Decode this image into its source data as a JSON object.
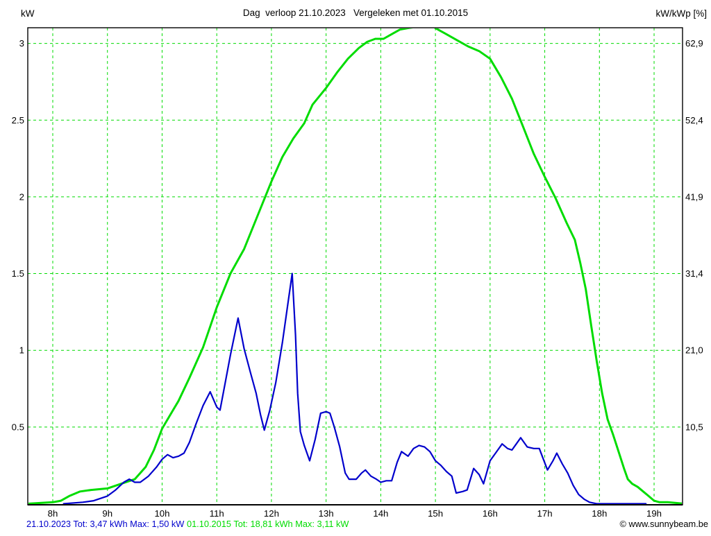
{
  "header": {
    "left_axis_unit": "kW",
    "title": "Dag  verloop 21.10.2023   Vergeleken met 01.10.2015",
    "right_axis_unit": "kW/kWp [%]"
  },
  "footer": {
    "series1_summary": "21.10.2023 Tot: 3,47 kWh Max: 1,50 kW ",
    "series2_summary": "01.10.2015 Tot: 18,81 kWh Max: 3,11 kW",
    "copyright": "© www.sunnybeam.be"
  },
  "colors": {
    "series_2023": "#0000CC",
    "series_2015": "#00DC00",
    "grid": "#00DC00",
    "axis": "#000000",
    "background": "#FFFFFF"
  },
  "chart_data": {
    "type": "line",
    "title": "Dag verloop 21.10.2023 Vergeleken met 01.10.2015",
    "ylabel_left": "kW",
    "ylabel_right": "kW/kWp [%]",
    "grid": true,
    "legend_position": "footer",
    "x_ticks": [
      "8h",
      "9h",
      "10h",
      "11h",
      "12h",
      "13h",
      "14h",
      "15h",
      "16h",
      "17h",
      "18h",
      "19h"
    ],
    "x_tick_hours": [
      8,
      9,
      10,
      11,
      12,
      13,
      14,
      15,
      16,
      17,
      18,
      19
    ],
    "y_ticks_left": [
      "3",
      "2.5",
      "2",
      "1.5",
      "1",
      "0.5"
    ],
    "y_tick_values": [
      3,
      2.5,
      2,
      1.5,
      1,
      0.5
    ],
    "y_ticks_right": [
      "62,9",
      "52,4",
      "41,9",
      "31,4",
      "21,0",
      "10,5"
    ],
    "xlim_hours": [
      7.5,
      19.55
    ],
    "ylim_kw": [
      0,
      3.1
    ],
    "series": [
      {
        "name": "21.10.2023",
        "unit": "kW",
        "total_kwh": "3,47",
        "max_kw": "1,50",
        "color": "#0000CC",
        "line_width": 2.2,
        "points": [
          [
            8.2,
            0.0
          ],
          [
            8.55,
            0.01
          ],
          [
            8.75,
            0.02
          ],
          [
            9.0,
            0.05
          ],
          [
            9.15,
            0.09
          ],
          [
            9.3,
            0.14
          ],
          [
            9.4,
            0.16
          ],
          [
            9.5,
            0.14
          ],
          [
            9.6,
            0.14
          ],
          [
            9.75,
            0.18
          ],
          [
            9.9,
            0.24
          ],
          [
            10.0,
            0.29
          ],
          [
            10.1,
            0.32
          ],
          [
            10.2,
            0.3
          ],
          [
            10.3,
            0.31
          ],
          [
            10.4,
            0.33
          ],
          [
            10.5,
            0.4
          ],
          [
            10.62,
            0.52
          ],
          [
            10.75,
            0.64
          ],
          [
            10.88,
            0.73
          ],
          [
            11.0,
            0.63
          ],
          [
            11.06,
            0.61
          ],
          [
            11.15,
            0.78
          ],
          [
            11.25,
            0.97
          ],
          [
            11.39,
            1.21
          ],
          [
            11.5,
            1.01
          ],
          [
            11.62,
            0.85
          ],
          [
            11.72,
            0.72
          ],
          [
            11.8,
            0.58
          ],
          [
            11.87,
            0.48
          ],
          [
            11.97,
            0.61
          ],
          [
            12.08,
            0.79
          ],
          [
            12.2,
            1.05
          ],
          [
            12.3,
            1.3
          ],
          [
            12.38,
            1.5
          ],
          [
            12.44,
            1.1
          ],
          [
            12.48,
            0.72
          ],
          [
            12.53,
            0.47
          ],
          [
            12.6,
            0.38
          ],
          [
            12.7,
            0.28
          ],
          [
            12.8,
            0.42
          ],
          [
            12.9,
            0.59
          ],
          [
            13.0,
            0.6
          ],
          [
            13.07,
            0.59
          ],
          [
            13.15,
            0.5
          ],
          [
            13.25,
            0.37
          ],
          [
            13.35,
            0.2
          ],
          [
            13.42,
            0.16
          ],
          [
            13.55,
            0.16
          ],
          [
            13.65,
            0.2
          ],
          [
            13.72,
            0.22
          ],
          [
            13.82,
            0.18
          ],
          [
            13.92,
            0.16
          ],
          [
            14.0,
            0.14
          ],
          [
            14.1,
            0.15
          ],
          [
            14.2,
            0.15
          ],
          [
            14.3,
            0.27
          ],
          [
            14.38,
            0.34
          ],
          [
            14.5,
            0.31
          ],
          [
            14.6,
            0.36
          ],
          [
            14.7,
            0.38
          ],
          [
            14.8,
            0.37
          ],
          [
            14.9,
            0.34
          ],
          [
            15.0,
            0.28
          ],
          [
            15.1,
            0.25
          ],
          [
            15.2,
            0.21
          ],
          [
            15.3,
            0.18
          ],
          [
            15.38,
            0.07
          ],
          [
            15.5,
            0.08
          ],
          [
            15.58,
            0.09
          ],
          [
            15.7,
            0.23
          ],
          [
            15.8,
            0.19
          ],
          [
            15.88,
            0.13
          ],
          [
            16.0,
            0.28
          ],
          [
            16.1,
            0.33
          ],
          [
            16.22,
            0.39
          ],
          [
            16.32,
            0.36
          ],
          [
            16.4,
            0.35
          ],
          [
            16.48,
            0.39
          ],
          [
            16.56,
            0.43
          ],
          [
            16.68,
            0.37
          ],
          [
            16.8,
            0.36
          ],
          [
            16.9,
            0.36
          ],
          [
            17.05,
            0.22
          ],
          [
            17.15,
            0.28
          ],
          [
            17.22,
            0.33
          ],
          [
            17.32,
            0.26
          ],
          [
            17.42,
            0.2
          ],
          [
            17.52,
            0.12
          ],
          [
            17.62,
            0.06
          ],
          [
            17.72,
            0.03
          ],
          [
            17.82,
            0.01
          ],
          [
            17.95,
            0.0
          ],
          [
            18.85,
            0.0
          ]
        ]
      },
      {
        "name": "01.10.2015",
        "unit": "kW",
        "total_kwh": "18,81",
        "max_kw": "3,11",
        "color": "#00DC00",
        "line_width": 3,
        "points": [
          [
            7.54,
            0.0
          ],
          [
            8.0,
            0.01
          ],
          [
            8.15,
            0.02
          ],
          [
            8.3,
            0.05
          ],
          [
            8.5,
            0.08
          ],
          [
            8.7,
            0.09
          ],
          [
            9.0,
            0.1
          ],
          [
            9.25,
            0.13
          ],
          [
            9.5,
            0.16
          ],
          [
            9.7,
            0.24
          ],
          [
            9.85,
            0.35
          ],
          [
            10.0,
            0.49
          ],
          [
            10.15,
            0.58
          ],
          [
            10.3,
            0.67
          ],
          [
            10.5,
            0.82
          ],
          [
            10.75,
            1.02
          ],
          [
            11.0,
            1.28
          ],
          [
            11.25,
            1.5
          ],
          [
            11.5,
            1.66
          ],
          [
            11.75,
            1.88
          ],
          [
            12.0,
            2.1
          ],
          [
            12.2,
            2.26
          ],
          [
            12.4,
            2.38
          ],
          [
            12.6,
            2.48
          ],
          [
            12.75,
            2.6
          ],
          [
            13.0,
            2.71
          ],
          [
            13.2,
            2.81
          ],
          [
            13.4,
            2.9
          ],
          [
            13.6,
            2.97
          ],
          [
            13.75,
            3.01
          ],
          [
            13.9,
            3.03
          ],
          [
            14.05,
            3.03
          ],
          [
            14.2,
            3.06
          ],
          [
            14.35,
            3.09
          ],
          [
            14.5,
            3.1
          ],
          [
            14.7,
            3.11
          ],
          [
            14.95,
            3.11
          ],
          [
            15.05,
            3.09
          ],
          [
            15.2,
            3.06
          ],
          [
            15.4,
            3.02
          ],
          [
            15.6,
            2.98
          ],
          [
            15.8,
            2.95
          ],
          [
            16.0,
            2.9
          ],
          [
            16.2,
            2.78
          ],
          [
            16.4,
            2.64
          ],
          [
            16.6,
            2.46
          ],
          [
            16.8,
            2.28
          ],
          [
            17.0,
            2.13
          ],
          [
            17.2,
            1.99
          ],
          [
            17.4,
            1.83
          ],
          [
            17.55,
            1.72
          ],
          [
            17.65,
            1.57
          ],
          [
            17.75,
            1.4
          ],
          [
            17.85,
            1.16
          ],
          [
            17.95,
            0.93
          ],
          [
            18.05,
            0.72
          ],
          [
            18.15,
            0.55
          ],
          [
            18.25,
            0.45
          ],
          [
            18.35,
            0.34
          ],
          [
            18.45,
            0.23
          ],
          [
            18.52,
            0.16
          ],
          [
            18.6,
            0.13
          ],
          [
            18.7,
            0.11
          ],
          [
            18.8,
            0.08
          ],
          [
            18.9,
            0.05
          ],
          [
            19.0,
            0.02
          ],
          [
            19.1,
            0.01
          ],
          [
            19.25,
            0.01
          ],
          [
            19.55,
            0.0
          ]
        ]
      }
    ]
  }
}
